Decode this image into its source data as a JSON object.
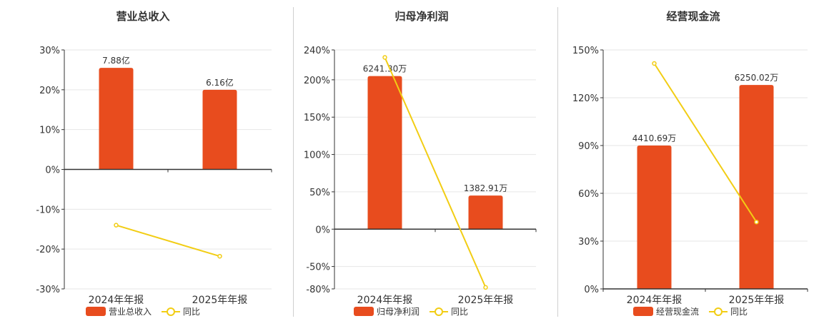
{
  "colors": {
    "bar": "#e84c1e",
    "line": "#f2cd14",
    "grid": "#e6e6e6",
    "axis": "#333333"
  },
  "chart_data": [
    {
      "type": "bar",
      "title": "营业总收入",
      "categories": [
        "2024年年报",
        "2025年年报"
      ],
      "ylim": [
        -30,
        30
      ],
      "yticks": [
        30,
        20,
        10,
        0,
        -10,
        -20,
        -30
      ],
      "ytick_labels": [
        "30%",
        "20%",
        "10%",
        "0%",
        "-10%",
        "-20%",
        "-30%"
      ],
      "series": [
        {
          "name": "营业总收入",
          "kind": "bar",
          "values": [
            25.5,
            20
          ],
          "labels": [
            "7.88亿",
            "6.16亿"
          ]
        },
        {
          "name": "同比",
          "kind": "line",
          "values": [
            -14,
            -21.8
          ]
        }
      ],
      "grid": true,
      "legend": "bottom"
    },
    {
      "type": "bar",
      "title": "归母净利润",
      "categories": [
        "2024年年报",
        "2025年年报"
      ],
      "ylim": [
        -80,
        240
      ],
      "yticks": [
        240,
        200,
        150,
        100,
        50,
        0,
        -50,
        -80
      ],
      "ytick_labels": [
        "240%",
        "200%",
        "150%",
        "100%",
        "50%",
        "0%",
        "-50%",
        "-80%"
      ],
      "series": [
        {
          "name": "归母净利润",
          "kind": "bar",
          "values": [
            205,
            45
          ],
          "labels": [
            "6241.30万",
            "1382.91万"
          ]
        },
        {
          "name": "同比",
          "kind": "line",
          "values": [
            230,
            -78
          ]
        }
      ],
      "grid": true,
      "legend": "bottom"
    },
    {
      "type": "bar",
      "title": "经营现金流",
      "categories": [
        "2024年年报",
        "2025年年报"
      ],
      "ylim": [
        0,
        150
      ],
      "yticks": [
        150,
        120,
        90,
        60,
        30,
        0
      ],
      "ytick_labels": [
        "150%",
        "120%",
        "90%",
        "60%",
        "30%",
        "0%"
      ],
      "series": [
        {
          "name": "经营现金流",
          "kind": "bar",
          "values": [
            90,
            128
          ],
          "labels": [
            "4410.69万",
            "6250.02万"
          ]
        },
        {
          "name": "同比",
          "kind": "line",
          "values": [
            141.5,
            42
          ]
        }
      ],
      "grid": true,
      "legend": "bottom"
    }
  ]
}
